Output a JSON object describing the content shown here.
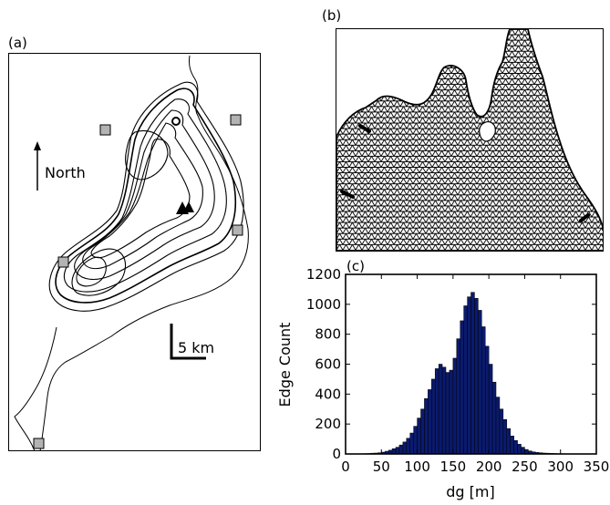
{
  "panels": {
    "a": {
      "label": "(a)",
      "north_label": "North",
      "scale_label": "5 km"
    },
    "b": {
      "label": "(b)"
    },
    "c": {
      "label": "(c)"
    }
  },
  "chart_data": {
    "type": "bar",
    "xlabel": "dg [m]",
    "ylabel": "Edge Count",
    "xlim": [
      0,
      350
    ],
    "ylim": [
      0,
      1200
    ],
    "xticks": [
      0,
      50,
      100,
      150,
      200,
      250,
      300,
      350
    ],
    "yticks": [
      0,
      200,
      400,
      600,
      800,
      1000,
      1200
    ],
    "bin_width": 5,
    "bins_start": [
      25,
      30,
      35,
      40,
      45,
      50,
      55,
      60,
      65,
      70,
      75,
      80,
      85,
      90,
      95,
      100,
      105,
      110,
      115,
      120,
      125,
      130,
      135,
      140,
      145,
      150,
      155,
      160,
      165,
      170,
      175,
      180,
      185,
      190,
      195,
      200,
      205,
      210,
      215,
      220,
      225,
      230,
      235,
      240,
      245,
      250,
      255,
      260,
      265,
      270,
      275,
      280,
      285,
      290,
      295,
      300,
      305,
      310,
      315,
      320
    ],
    "values": [
      2,
      3,
      5,
      6,
      8,
      12,
      18,
      25,
      35,
      45,
      60,
      80,
      105,
      140,
      185,
      240,
      300,
      370,
      430,
      500,
      570,
      600,
      580,
      545,
      560,
      640,
      770,
      890,
      990,
      1050,
      1080,
      1040,
      960,
      850,
      720,
      600,
      480,
      380,
      300,
      230,
      170,
      120,
      90,
      65,
      45,
      30,
      20,
      14,
      10,
      8,
      6,
      5,
      4,
      3,
      2,
      2,
      1,
      1,
      1,
      0
    ],
    "bar_color": "#0a1a6e"
  }
}
